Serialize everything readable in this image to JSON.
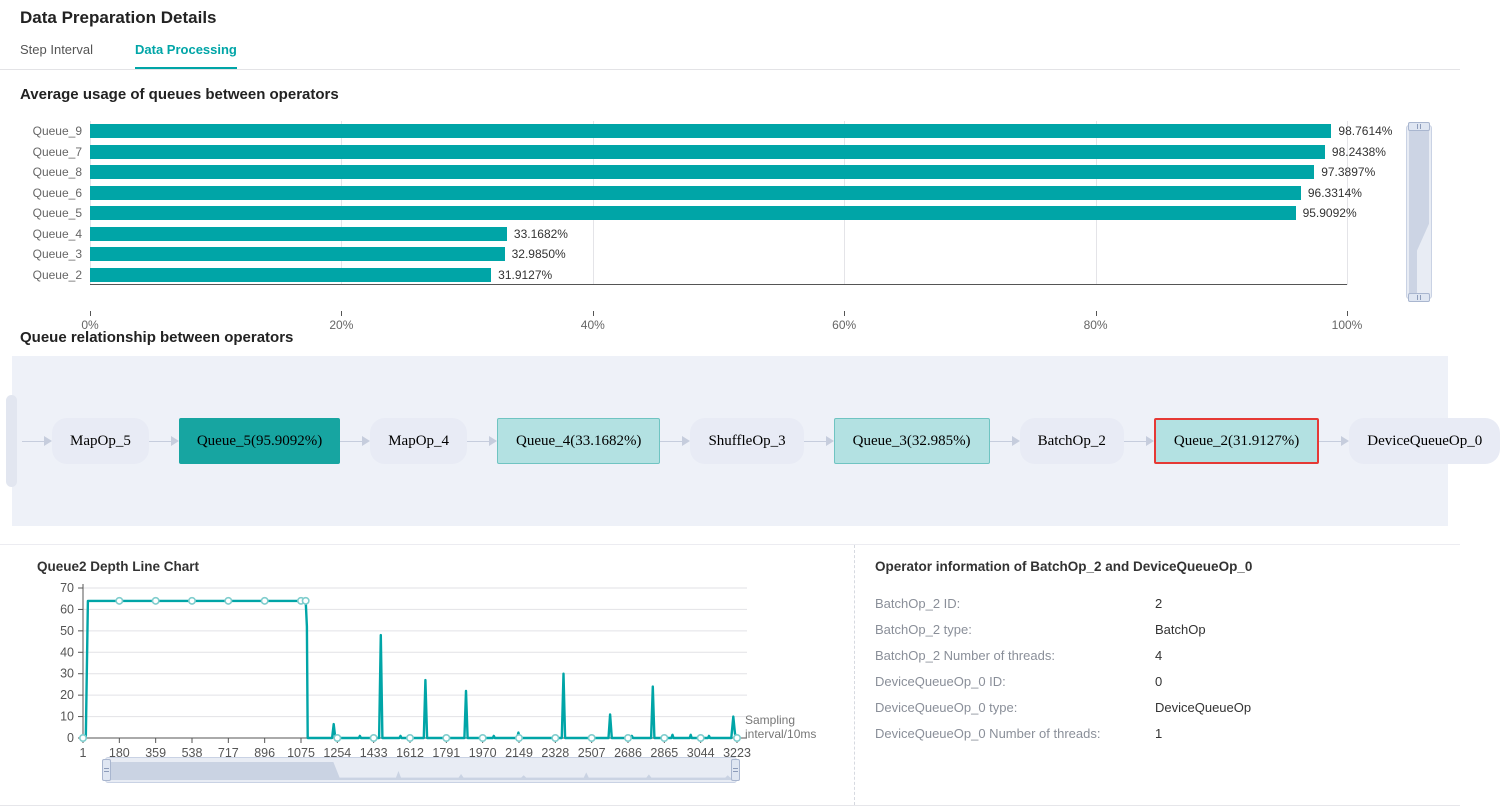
{
  "page": {
    "title": "Data Preparation Details"
  },
  "tabs": [
    {
      "label": "Step Interval",
      "active": false
    },
    {
      "label": "Data Processing",
      "active": true
    }
  ],
  "colors": {
    "accent": "#00a5a7",
    "bar": "#00a5a7",
    "queue_node_full": "#17a5a1",
    "queue_node_light": "#b3e1e2",
    "queue_node_border": "#6fc4c2",
    "selected_node_border": "#e53935",
    "diagram_background": "#eef1f8"
  },
  "bar_section": {
    "title": "Average usage of queues between operators"
  },
  "diagram_section": {
    "title": "Queue relationship between operators"
  },
  "chart_data": [
    {
      "type": "bar",
      "title": "Average usage of queues between operators",
      "orientation": "horizontal",
      "categories": [
        "Queue_9",
        "Queue_7",
        "Queue_8",
        "Queue_6",
        "Queue_5",
        "Queue_4",
        "Queue_3",
        "Queue_2"
      ],
      "values": [
        98.7614,
        98.2438,
        97.3897,
        96.3314,
        95.9092,
        33.1682,
        32.985,
        31.9127
      ],
      "value_labels": [
        "98.7614%",
        "98.2438%",
        "97.3897%",
        "96.3314%",
        "95.9092%",
        "33.1682%",
        "32.9850%",
        "31.9127%"
      ],
      "xlim": [
        0,
        100
      ],
      "x_ticks": [
        "0%",
        "20%",
        "40%",
        "60%",
        "80%",
        "100%"
      ],
      "grid": true,
      "has_zoom_slider": true
    },
    {
      "type": "line",
      "title": "Queue2 Depth Line Chart",
      "xlabel": "Sampling interval/10ms",
      "ylim": [
        0,
        70
      ],
      "xlim": [
        1,
        3223
      ],
      "y_ticks": [
        0,
        10,
        20,
        30,
        40,
        50,
        60,
        70
      ],
      "x_ticks": [
        1,
        180,
        359,
        538,
        717,
        896,
        1075,
        1254,
        1433,
        1612,
        1791,
        1970,
        2149,
        2328,
        2507,
        2686,
        2865,
        3044,
        3223
      ],
      "grid": true,
      "has_zoom_slider": true,
      "points": [
        [
          1,
          0
        ],
        [
          15,
          0
        ],
        [
          25,
          64
        ],
        [
          180,
          64
        ],
        [
          359,
          64
        ],
        [
          538,
          64
        ],
        [
          717,
          64
        ],
        [
          896,
          64
        ],
        [
          1075,
          64
        ],
        [
          1098,
          64
        ],
        [
          1104,
          52
        ],
        [
          1108,
          0
        ],
        [
          1228,
          0
        ],
        [
          1236,
          6.5
        ],
        [
          1244,
          0
        ],
        [
          1360,
          0
        ],
        [
          1365,
          1
        ],
        [
          1370,
          0
        ],
        [
          1460,
          0
        ],
        [
          1468,
          48
        ],
        [
          1476,
          0
        ],
        [
          1560,
          0
        ],
        [
          1565,
          1
        ],
        [
          1570,
          0
        ],
        [
          1680,
          0
        ],
        [
          1688,
          27
        ],
        [
          1696,
          0
        ],
        [
          1780,
          0
        ],
        [
          1785,
          1
        ],
        [
          1790,
          0
        ],
        [
          1880,
          0
        ],
        [
          1888,
          22
        ],
        [
          1896,
          0
        ],
        [
          2020,
          0
        ],
        [
          2025,
          1
        ],
        [
          2030,
          0
        ],
        [
          2140,
          0
        ],
        [
          2146,
          2.5
        ],
        [
          2152,
          0
        ],
        [
          2360,
          0
        ],
        [
          2368,
          30
        ],
        [
          2376,
          0
        ],
        [
          2500,
          0
        ],
        [
          2505,
          1
        ],
        [
          2510,
          0
        ],
        [
          2590,
          0
        ],
        [
          2598,
          11
        ],
        [
          2606,
          0
        ],
        [
          2700,
          0
        ],
        [
          2705,
          1
        ],
        [
          2710,
          0
        ],
        [
          2800,
          0
        ],
        [
          2808,
          24
        ],
        [
          2816,
          0
        ],
        [
          2900,
          0
        ],
        [
          2905,
          1.5
        ],
        [
          2910,
          0
        ],
        [
          2990,
          0
        ],
        [
          2995,
          1.5
        ],
        [
          3000,
          0
        ],
        [
          3080,
          0
        ],
        [
          3085,
          1
        ],
        [
          3090,
          0
        ],
        [
          3195,
          0
        ],
        [
          3205,
          10
        ],
        [
          3213,
          2
        ],
        [
          3223,
          0
        ]
      ],
      "markers_top": {
        "y": 64,
        "x": [
          180,
          359,
          538,
          717,
          896,
          1075,
          1098
        ]
      },
      "markers_bottom": {
        "y": 0,
        "x": [
          1,
          1254,
          1433,
          1612,
          1791,
          1970,
          2149,
          2328,
          2507,
          2686,
          2865,
          3044,
          3223
        ]
      }
    }
  ],
  "diagram": {
    "nodes": [
      {
        "label": "",
        "type": "clip"
      },
      {
        "label": "MapOp_5",
        "type": "op"
      },
      {
        "label": "Queue_5(95.9092%)",
        "type": "full"
      },
      {
        "label": "MapOp_4",
        "type": "op"
      },
      {
        "label": "Queue_4(33.1682%)",
        "type": "queue"
      },
      {
        "label": "ShuffleOp_3",
        "type": "op"
      },
      {
        "label": "Queue_3(32.985%)",
        "type": "queue"
      },
      {
        "label": "BatchOp_2",
        "type": "op"
      },
      {
        "label": "Queue_2(31.9127%)",
        "type": "sel"
      },
      {
        "label": "DeviceQueueOp_0",
        "type": "op"
      }
    ]
  },
  "info_panel": {
    "title": "Operator information of BatchOp_2 and DeviceQueueOp_0",
    "rows": [
      {
        "label": "BatchOp_2 ID:",
        "value": "2"
      },
      {
        "label": "BatchOp_2 type:",
        "value": "BatchOp"
      },
      {
        "label": "BatchOp_2 Number of threads:",
        "value": "4"
      },
      {
        "label": "DeviceQueueOp_0 ID:",
        "value": "0"
      },
      {
        "label": "DeviceQueueOp_0 type:",
        "value": "DeviceQueueOp"
      },
      {
        "label": "DeviceQueueOp_0 Number of threads:",
        "value": "1"
      }
    ]
  }
}
